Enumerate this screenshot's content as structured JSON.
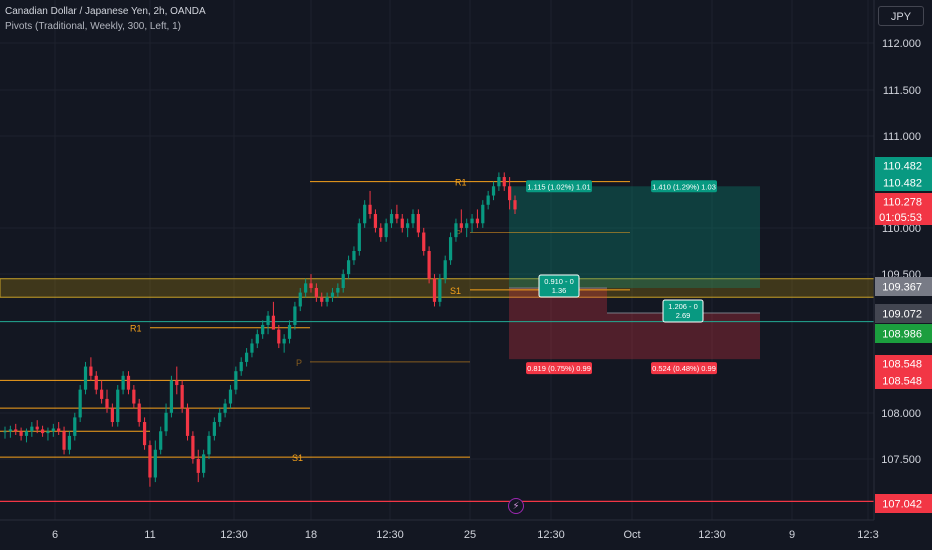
{
  "header": {
    "title": "Canadian Dollar / Japanese Yen, 2h, OANDA",
    "indicator": "Pivots (Traditional, Weekly, 300, Left, 1)",
    "currency": "JPY"
  },
  "chart_data": {
    "type": "candlestick",
    "symbol": "CADJPY",
    "yrange": [
      107.0,
      112.2
    ],
    "y_ticks": [
      "112.000",
      "111.500",
      "111.000",
      "110.000",
      "109.500",
      "108.000",
      "107.500"
    ],
    "x_ticks": [
      "6",
      "11",
      "12:30",
      "18",
      "12:30",
      "25",
      "12:30",
      "Oct",
      "12:30",
      "9",
      "12:3"
    ],
    "candles": [
      [
        107.8,
        107.85,
        107.72,
        107.8
      ],
      [
        107.8,
        107.86,
        107.73,
        107.82
      ],
      [
        107.82,
        107.88,
        107.76,
        107.8
      ],
      [
        107.8,
        107.84,
        107.7,
        107.75
      ],
      [
        107.75,
        107.83,
        107.68,
        107.8
      ],
      [
        107.8,
        107.9,
        107.74,
        107.85
      ],
      [
        107.85,
        107.92,
        107.78,
        107.82
      ],
      [
        107.82,
        107.86,
        107.74,
        107.78
      ],
      [
        107.78,
        107.84,
        107.7,
        107.8
      ],
      [
        107.8,
        107.88,
        107.74,
        107.83
      ],
      [
        107.83,
        107.9,
        107.76,
        107.8
      ],
      [
        107.8,
        107.85,
        107.55,
        107.6
      ],
      [
        107.6,
        107.8,
        107.55,
        107.75
      ],
      [
        107.75,
        108.0,
        107.7,
        107.95
      ],
      [
        107.95,
        108.3,
        107.9,
        108.25
      ],
      [
        108.25,
        108.55,
        108.2,
        108.5
      ],
      [
        108.5,
        108.6,
        108.35,
        108.4
      ],
      [
        108.4,
        108.45,
        108.2,
        108.25
      ],
      [
        108.25,
        108.35,
        108.1,
        108.15
      ],
      [
        108.15,
        108.25,
        108.0,
        108.05
      ],
      [
        108.05,
        108.1,
        107.85,
        107.9
      ],
      [
        107.9,
        108.3,
        107.85,
        108.25
      ],
      [
        108.25,
        108.45,
        108.2,
        108.4
      ],
      [
        108.4,
        108.45,
        108.2,
        108.25
      ],
      [
        108.25,
        108.3,
        108.05,
        108.1
      ],
      [
        108.1,
        108.15,
        107.85,
        107.9
      ],
      [
        107.9,
        107.95,
        107.6,
        107.65
      ],
      [
        107.65,
        107.7,
        107.2,
        107.3
      ],
      [
        107.3,
        107.7,
        107.25,
        107.6
      ],
      [
        107.6,
        107.85,
        107.55,
        107.8
      ],
      [
        107.8,
        108.1,
        107.75,
        108.0
      ],
      [
        108.0,
        108.4,
        107.95,
        108.35
      ],
      [
        108.35,
        108.5,
        108.2,
        108.3
      ],
      [
        108.3,
        108.35,
        108.0,
        108.05
      ],
      [
        108.05,
        108.1,
        107.7,
        107.75
      ],
      [
        107.75,
        107.8,
        107.45,
        107.5
      ],
      [
        107.5,
        107.6,
        107.25,
        107.35
      ],
      [
        107.35,
        107.6,
        107.3,
        107.55
      ],
      [
        107.55,
        107.8,
        107.5,
        107.75
      ],
      [
        107.75,
        107.95,
        107.7,
        107.9
      ],
      [
        107.9,
        108.05,
        107.85,
        108.0
      ],
      [
        108.0,
        108.15,
        107.95,
        108.1
      ],
      [
        108.1,
        108.3,
        108.05,
        108.25
      ],
      [
        108.25,
        108.5,
        108.2,
        108.45
      ],
      [
        108.45,
        108.6,
        108.4,
        108.55
      ],
      [
        108.55,
        108.7,
        108.5,
        108.65
      ],
      [
        108.65,
        108.8,
        108.6,
        108.75
      ],
      [
        108.75,
        108.9,
        108.7,
        108.85
      ],
      [
        108.85,
        109.0,
        108.8,
        108.95
      ],
      [
        108.95,
        109.1,
        108.85,
        109.05
      ],
      [
        109.05,
        109.2,
        108.95,
        108.9
      ],
      [
        108.9,
        108.95,
        108.7,
        108.75
      ],
      [
        108.75,
        108.85,
        108.65,
        108.8
      ],
      [
        108.8,
        109.0,
        108.75,
        108.95
      ],
      [
        108.95,
        109.2,
        108.9,
        109.15
      ],
      [
        109.15,
        109.35,
        109.1,
        109.3
      ],
      [
        109.3,
        109.45,
        109.25,
        109.4
      ],
      [
        109.4,
        109.5,
        109.3,
        109.35
      ],
      [
        109.35,
        109.4,
        109.2,
        109.25
      ],
      [
        109.25,
        109.3,
        109.15,
        109.2
      ],
      [
        109.2,
        109.3,
        109.15,
        109.25
      ],
      [
        109.25,
        109.35,
        109.2,
        109.3
      ],
      [
        109.3,
        109.4,
        109.25,
        109.35
      ],
      [
        109.35,
        109.55,
        109.3,
        109.5
      ],
      [
        109.5,
        109.7,
        109.45,
        109.65
      ],
      [
        109.65,
        109.8,
        109.6,
        109.75
      ],
      [
        109.75,
        110.1,
        109.7,
        110.05
      ],
      [
        110.05,
        110.3,
        110.0,
        110.25
      ],
      [
        110.25,
        110.4,
        110.1,
        110.15
      ],
      [
        110.15,
        110.2,
        109.95,
        110.0
      ],
      [
        110.0,
        110.05,
        109.85,
        109.9
      ],
      [
        109.9,
        110.1,
        109.85,
        110.05
      ],
      [
        110.05,
        110.2,
        110.0,
        110.15
      ],
      [
        110.15,
        110.25,
        110.05,
        110.1
      ],
      [
        110.1,
        110.15,
        109.95,
        110.0
      ],
      [
        110.0,
        110.1,
        109.9,
        110.05
      ],
      [
        110.05,
        110.2,
        110.0,
        110.15
      ],
      [
        110.15,
        110.2,
        109.9,
        109.95
      ],
      [
        109.95,
        110.0,
        109.7,
        109.75
      ],
      [
        109.75,
        109.8,
        109.4,
        109.45
      ],
      [
        109.45,
        109.5,
        109.15,
        109.2
      ],
      [
        109.2,
        109.5,
        109.15,
        109.45
      ],
      [
        109.45,
        109.7,
        109.4,
        109.65
      ],
      [
        109.65,
        109.95,
        109.6,
        109.9
      ],
      [
        109.9,
        110.1,
        109.85,
        110.05
      ],
      [
        110.05,
        110.2,
        109.95,
        110.0
      ],
      [
        110.0,
        110.1,
        109.9,
        110.05
      ],
      [
        110.05,
        110.15,
        109.95,
        110.1
      ],
      [
        110.1,
        110.2,
        110.0,
        110.05
      ],
      [
        110.05,
        110.3,
        110.0,
        110.25
      ],
      [
        110.25,
        110.4,
        110.2,
        110.35
      ],
      [
        110.35,
        110.5,
        110.3,
        110.45
      ],
      [
        110.45,
        110.6,
        110.4,
        110.55
      ],
      [
        110.55,
        110.6,
        110.4,
        110.45
      ],
      [
        110.45,
        110.55,
        110.2,
        110.3
      ],
      [
        110.3,
        110.35,
        110.15,
        110.2
      ]
    ],
    "horizontal_lines": [
      {
        "price": 110.482,
        "color": "#089981"
      },
      {
        "price": 110.278,
        "color": "#f23645"
      },
      {
        "price": 109.367,
        "color": "#787b86"
      },
      {
        "price": 109.072,
        "color": "#089981"
      },
      {
        "price": 108.986,
        "color": "#22ab94"
      },
      {
        "price": 108.548,
        "color": "#f23645"
      },
      {
        "price": 107.042,
        "color": "#f23645"
      }
    ],
    "zone": {
      "top": 109.45,
      "bottom": 109.25,
      "color": "#b28b0a"
    },
    "pivots": [
      {
        "label": "R1",
        "price": 110.5
      },
      {
        "label": "P",
        "price": 109.95
      },
      {
        "label": "S1",
        "price": 109.33
      },
      {
        "label": "R1",
        "price": 108.92
      },
      {
        "label": "P",
        "price": 108.55
      },
      {
        "label": "S1",
        "price": 107.52
      }
    ],
    "positions": [
      {
        "type": "long",
        "entry": 109.35,
        "target": 110.45,
        "stop": 108.58,
        "label_top": "1.115 (1.02%) 1.01",
        "label_mid_1": "0.910 - 0",
        "label_mid_2": "1.36",
        "label_bot": "0.819 (0.75%) 0.99"
      },
      {
        "type": "long",
        "entry": 109.08,
        "target": 110.45,
        "stop": 108.58,
        "label_top": "1.410 (1.29%) 1.03",
        "label_mid_1": "1.206 - 0",
        "label_mid_2": "2.69",
        "label_bot": "0.524 (0.48%) 0.99"
      }
    ],
    "price_labels": [
      {
        "text": "110.482",
        "color": "#089981"
      },
      {
        "text": "110.482",
        "color": "#089981"
      },
      {
        "text": "110.278",
        "color": "#f23645"
      },
      {
        "text": "01:05:53",
        "color": "#f23645"
      },
      {
        "text": "109.367",
        "color": "#787b86"
      },
      {
        "text": "109.072",
        "color": "#434651"
      },
      {
        "text": "108.986",
        "color": "#1b9e3e"
      },
      {
        "text": "108.548",
        "color": "#f23645"
      },
      {
        "text": "108.548",
        "color": "#f23645"
      },
      {
        "text": "107.042",
        "color": "#f23645"
      }
    ],
    "colors": {
      "up": "#089981",
      "down": "#f23645",
      "pivot": "#f7a21b",
      "grid": "#1e222d",
      "axis_text": "#d1d4dc",
      "background": "#131722"
    }
  }
}
